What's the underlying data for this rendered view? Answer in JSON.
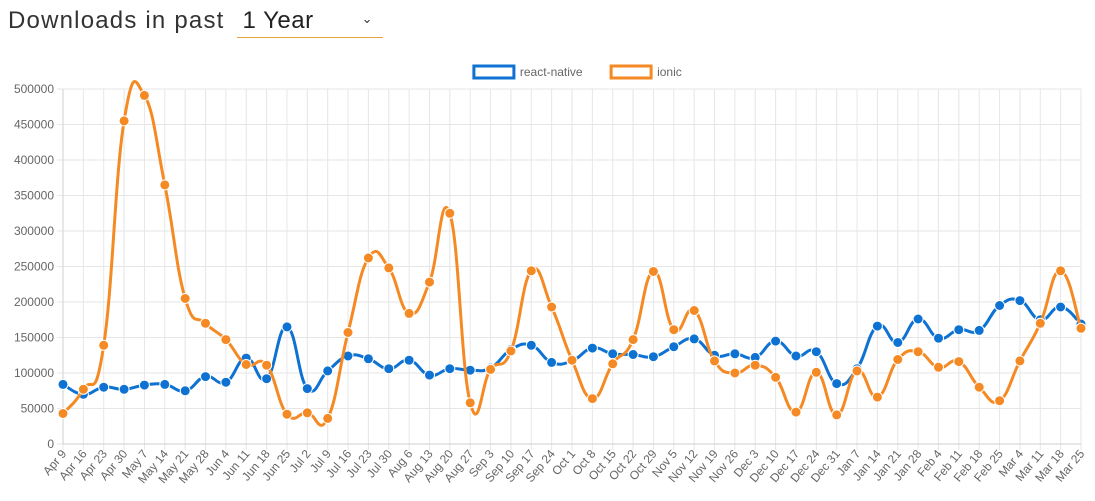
{
  "header": {
    "label": "Downloads in past",
    "selected_period": "1 Year"
  },
  "colors": {
    "react_native": "#0e72d2",
    "ionic": "#f58a24",
    "grid": "#e6e6e6",
    "period_underline": "#e8a33c"
  },
  "icons": {
    "dropdown": "chevron-down-icon"
  },
  "chart_data": {
    "type": "line",
    "title": "",
    "xlabel": "",
    "ylabel": "",
    "ylim": [
      0,
      500000
    ],
    "y_ticks": [
      0,
      50000,
      100000,
      150000,
      200000,
      250000,
      300000,
      350000,
      400000,
      450000,
      500000
    ],
    "grid": true,
    "legend_position": "top-center",
    "categories": [
      "Apr 9",
      "Apr 16",
      "Apr 23",
      "Apr 30",
      "May 7",
      "May 14",
      "May 21",
      "May 28",
      "Jun 4",
      "Jun 11",
      "Jun 18",
      "Jun 25",
      "Jul 2",
      "Jul 9",
      "Jul 16",
      "Jul 23",
      "Jul 30",
      "Aug 6",
      "Aug 13",
      "Aug 20",
      "Aug 27",
      "Sep 3",
      "Sep 10",
      "Sep 17",
      "Sep 24",
      "Oct 1",
      "Oct 8",
      "Oct 15",
      "Oct 22",
      "Oct 29",
      "Nov 5",
      "Nov 12",
      "Nov 19",
      "Nov 26",
      "Dec 3",
      "Dec 10",
      "Dec 17",
      "Dec 24",
      "Dec 31",
      "Jan 7",
      "Jan 14",
      "Jan 21",
      "Jan 28",
      "Feb 4",
      "Feb 11",
      "Feb 18",
      "Feb 25",
      "Mar 4",
      "Mar 11",
      "Mar 18",
      "Mar 25"
    ],
    "series": [
      {
        "name": "react-native",
        "color": "#0e72d2",
        "values": [
          84000,
          70000,
          80000,
          77000,
          83000,
          84000,
          75000,
          95000,
          87000,
          121000,
          92000,
          165000,
          78000,
          103000,
          124000,
          120000,
          106000,
          118000,
          97000,
          106000,
          104000,
          107000,
          133000,
          139000,
          115000,
          117000,
          135000,
          127000,
          126000,
          123000,
          137000,
          148000,
          125000,
          127000,
          122000,
          145000,
          124000,
          130000,
          85000,
          106000,
          166000,
          143000,
          176000,
          149000,
          161000,
          160000,
          195000,
          202000,
          175000,
          193000,
          169000
        ]
      },
      {
        "name": "ionic",
        "color": "#f58a24",
        "values": [
          43000,
          77000,
          139000,
          455000,
          491000,
          365000,
          205000,
          170000,
          147000,
          112000,
          111000,
          42000,
          44000,
          36000,
          157000,
          262000,
          248000,
          184000,
          228000,
          325000,
          58000,
          105000,
          131000,
          244000,
          193000,
          118000,
          64000,
          113000,
          147000,
          243000,
          161000,
          188000,
          117000,
          100000,
          111000,
          94000,
          45000,
          101000,
          41000,
          103000,
          66000,
          119000,
          130000,
          108000,
          116000,
          80000,
          61000,
          117000,
          170000,
          244000,
          163000
        ]
      }
    ]
  }
}
